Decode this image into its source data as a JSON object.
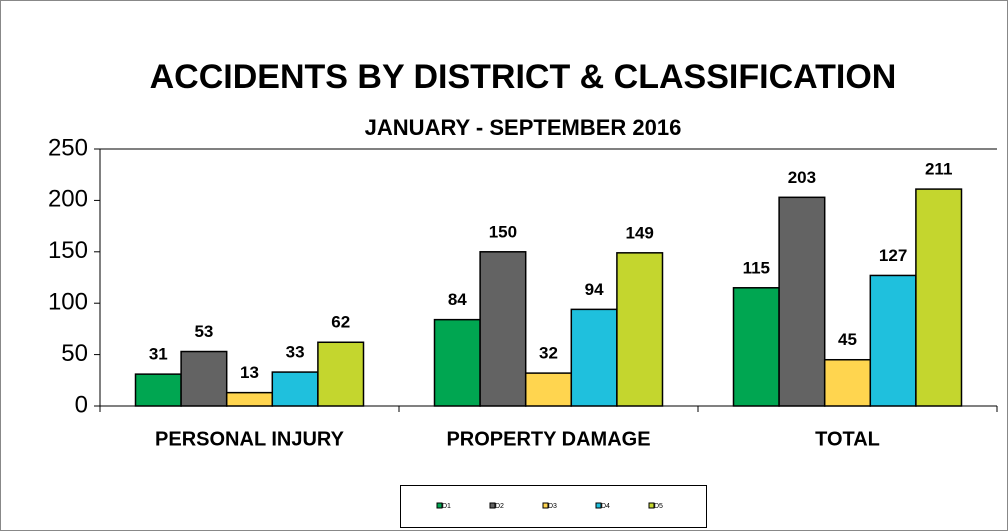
{
  "chart_data": {
    "type": "bar",
    "title": "ACCIDENTS BY DISTRICT & CLASSIFICATION",
    "subtitle": "JANUARY - SEPTEMBER 2016",
    "categories": [
      "PERSONAL INJURY",
      "PROPERTY DAMAGE",
      "TOTAL"
    ],
    "series": [
      {
        "name": "D1",
        "color": "#00a651",
        "values": [
          31,
          84,
          115
        ]
      },
      {
        "name": "D2",
        "color": "#636363",
        "values": [
          53,
          150,
          203
        ]
      },
      {
        "name": "D3",
        "color": "#ffd54f",
        "values": [
          13,
          32,
          45
        ]
      },
      {
        "name": "D4",
        "color": "#1fc0dd",
        "values": [
          33,
          94,
          127
        ]
      },
      {
        "name": "D5",
        "color": "#c4d62e",
        "values": [
          62,
          149,
          211
        ]
      }
    ],
    "ylim": [
      0,
      250
    ],
    "yticks": [
      0,
      50,
      100,
      150,
      200,
      250
    ],
    "legend": "bottom"
  }
}
